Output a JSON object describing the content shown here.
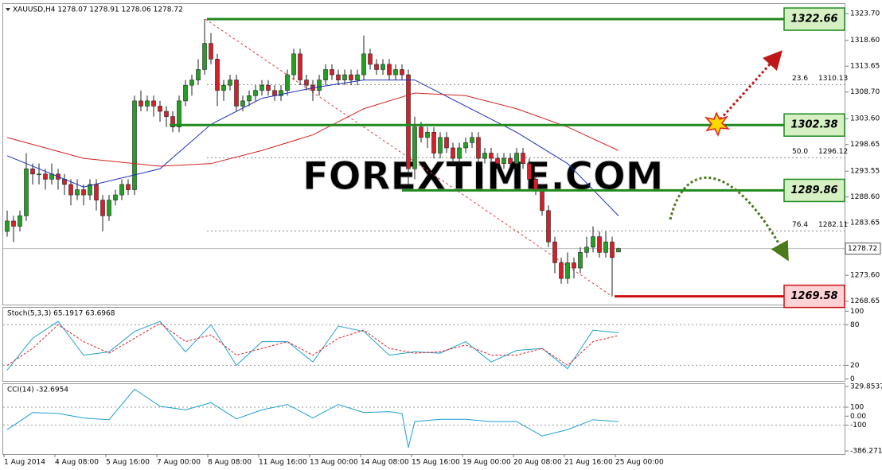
{
  "chart_data": [
    {
      "type": "candlestick",
      "title": "XAUUSD,H4 1278.07 1278.91 1278.06 1278.72",
      "watermark": "FOREXTIME.COM",
      "categories": [
        "1 Aug 2014",
        null,
        null,
        null,
        null,
        null,
        null,
        null,
        "4 Aug 08:00",
        null,
        null,
        null,
        null,
        null,
        null,
        null,
        "5 Aug 16:00",
        null,
        null,
        null,
        null,
        null,
        null,
        null,
        "7 Aug 00:00",
        null,
        null,
        null,
        null,
        null,
        null,
        null,
        "8 Aug 08:00",
        null,
        null,
        null,
        null,
        null,
        null,
        null,
        "11 Aug 16:00",
        null,
        null,
        null,
        null,
        null,
        null,
        null,
        "13 Aug 00:00",
        null,
        null,
        null,
        null,
        null,
        null,
        null,
        "14 Aug 08:00",
        null,
        null,
        null,
        null,
        null,
        null,
        null,
        "15 Aug 16:00",
        null,
        null,
        null,
        null,
        null,
        null,
        null,
        "19 Aug 00:00",
        null,
        null,
        null,
        null,
        null,
        null,
        null,
        "20 Aug 08:00",
        null,
        null,
        null,
        null,
        null,
        null,
        null,
        "21 Aug 16:00",
        null,
        null,
        null,
        null,
        null,
        null,
        null,
        "25 Aug 00:00"
      ],
      "candles": [
        [
          1282,
          1286,
          1281,
          1284
        ],
        [
          1284,
          1285,
          1280,
          1283
        ],
        [
          1283,
          1286,
          1282,
          1285
        ],
        [
          1285,
          1297,
          1284,
          1294
        ],
        [
          1294,
          1295,
          1291,
          1293
        ],
        [
          1293,
          1295,
          1291,
          1293
        ],
        [
          1293,
          1294,
          1290,
          1292
        ],
        [
          1292,
          1295,
          1291,
          1293
        ],
        [
          1293,
          1294,
          1290,
          1292
        ],
        [
          1292,
          1293,
          1289,
          1291
        ],
        [
          1291,
          1292,
          1287,
          1289
        ],
        [
          1289,
          1292,
          1288,
          1290
        ],
        [
          1290,
          1291,
          1287,
          1289
        ],
        [
          1289,
          1292,
          1288,
          1291
        ],
        [
          1291,
          1292,
          1286,
          1288
        ],
        [
          1288,
          1289,
          1282,
          1285
        ],
        [
          1285,
          1289,
          1284,
          1288
        ],
        [
          1288,
          1290,
          1287,
          1289
        ],
        [
          1289,
          1292,
          1288,
          1291
        ],
        [
          1291,
          1292,
          1289,
          1290
        ],
        [
          1290,
          1308,
          1289,
          1307
        ],
        [
          1307,
          1309,
          1305,
          1306
        ],
        [
          1306,
          1308,
          1305,
          1307
        ],
        [
          1307,
          1308,
          1304,
          1306
        ],
        [
          1306,
          1307,
          1303,
          1305
        ],
        [
          1305,
          1306,
          1302,
          1304
        ],
        [
          1304,
          1305,
          1301,
          1302
        ],
        [
          1302,
          1308,
          1301,
          1307
        ],
        [
          1307,
          1311,
          1306,
          1310
        ],
        [
          1310,
          1312,
          1308,
          1311
        ],
        [
          1311,
          1315,
          1310,
          1313
        ],
        [
          1313,
          1322.66,
          1312,
          1318
        ],
        [
          1318,
          1320,
          1314,
          1315
        ],
        [
          1315,
          1316,
          1306,
          1309
        ],
        [
          1309,
          1311,
          1307,
          1310
        ],
        [
          1310,
          1312,
          1309,
          1311
        ],
        [
          1311,
          1312,
          1305,
          1306
        ],
        [
          1306,
          1308,
          1305,
          1307
        ],
        [
          1307,
          1309,
          1306,
          1308
        ],
        [
          1308,
          1310,
          1307,
          1309
        ],
        [
          1309,
          1311,
          1308,
          1310
        ],
        [
          1310,
          1311,
          1308,
          1309
        ],
        [
          1309,
          1310,
          1307,
          1308
        ],
        [
          1308,
          1310,
          1307,
          1309
        ],
        [
          1309,
          1313,
          1308,
          1312
        ],
        [
          1312,
          1317,
          1311,
          1316
        ],
        [
          1316,
          1317,
          1310,
          1311
        ],
        [
          1311,
          1312,
          1309,
          1310
        ],
        [
          1310,
          1311,
          1307,
          1309
        ],
        [
          1309,
          1312,
          1308,
          1311
        ],
        [
          1311,
          1314,
          1310,
          1313
        ],
        [
          1313,
          1314,
          1311,
          1312
        ],
        [
          1312,
          1313,
          1310,
          1311
        ],
        [
          1311,
          1313,
          1310,
          1312
        ],
        [
          1312,
          1313,
          1310,
          1311
        ],
        [
          1311,
          1313,
          1310,
          1312
        ],
        [
          1312,
          1319.5,
          1311,
          1316
        ],
        [
          1316,
          1317,
          1313,
          1314
        ],
        [
          1314,
          1315,
          1312,
          1313
        ],
        [
          1313,
          1315,
          1312,
          1314
        ],
        [
          1314,
          1315,
          1311,
          1312
        ],
        [
          1312,
          1314,
          1311,
          1313
        ],
        [
          1313,
          1314,
          1311,
          1312
        ],
        [
          1312,
          1313,
          1291,
          1294
        ],
        [
          1294,
          1304,
          1292,
          1302
        ],
        [
          1302,
          1303,
          1299,
          1300
        ],
        [
          1300,
          1302,
          1298,
          1301
        ],
        [
          1301,
          1302,
          1296,
          1297
        ],
        [
          1297,
          1301,
          1296,
          1300
        ],
        [
          1300,
          1301,
          1297,
          1298
        ],
        [
          1298,
          1299,
          1295,
          1296
        ],
        [
          1296,
          1299,
          1295,
          1298
        ],
        [
          1298,
          1300,
          1297,
          1299
        ],
        [
          1299,
          1301,
          1298,
          1300
        ],
        [
          1300,
          1301,
          1295,
          1296
        ],
        [
          1296,
          1298,
          1295,
          1297
        ],
        [
          1297,
          1298,
          1295,
          1296
        ],
        [
          1296,
          1297,
          1294,
          1295
        ],
        [
          1295,
          1297,
          1294,
          1296
        ],
        [
          1296,
          1297,
          1294,
          1295
        ],
        [
          1295,
          1298,
          1294,
          1297
        ],
        [
          1297,
          1298,
          1294,
          1295
        ],
        [
          1295,
          1296,
          1291,
          1292
        ],
        [
          1292,
          1293,
          1289,
          1290
        ],
        [
          1290,
          1291,
          1285,
          1286
        ],
        [
          1286,
          1287,
          1279,
          1280
        ],
        [
          1280,
          1281,
          1274,
          1276
        ],
        [
          1276,
          1277,
          1272,
          1273
        ],
        [
          1273,
          1278,
          1272,
          1276
        ],
        [
          1276,
          1277,
          1273,
          1275
        ],
        [
          1275,
          1279,
          1274,
          1278
        ],
        [
          1278,
          1281,
          1277,
          1279
        ],
        [
          1279,
          1283,
          1278,
          1281
        ],
        [
          1281,
          1282,
          1277,
          1278
        ],
        [
          1278,
          1282,
          1277,
          1280
        ],
        [
          1280,
          1281,
          1269.58,
          1277
        ],
        [
          1278.07,
          1278.91,
          1278.06,
          1278.72
        ]
      ],
      "up_color": "#22a022",
      "down_color": "#d81e2a",
      "ylim": [
        1268.0,
        1325.1
      ],
      "yticks": [
        {
          "value": 1323.7,
          "label": "1323.70"
        },
        {
          "value": 1318.6,
          "label": "1318.60"
        },
        1313.65,
        {
          "value": 1308.7,
          "label": "1308.70"
        },
        {
          "value": 1303.6,
          "label": "1303.60"
        },
        1298.65,
        1293.55,
        {
          "value": 1288.6,
          "label": "1288.60"
        },
        1283.65,
        {
          "value": 1273.6,
          "label": "1273.60"
        },
        1268.65
      ],
      "moving_averages": {
        "x": [
          0,
          12,
          24,
          32,
          40,
          48,
          56,
          64,
          72,
          80,
          88,
          96
        ],
        "series": [
          {
            "color": "#1c2fb8",
            "values": [
              1296.5,
              1290.5,
              1294,
              1302.5,
              1307.5,
              1309.5,
              1311,
              1311,
              1306,
              1301,
              1295,
              1285
            ]
          },
          {
            "color": "#d42020",
            "values": [
              1300,
              1296,
              1294.5,
              1295,
              1297.5,
              1300.5,
              1305.5,
              1308.5,
              1308,
              1305.5,
              1302,
              1297.5
            ]
          }
        ]
      },
      "levels": [
        {
          "value": 1322.66,
          "color": "#1f8a1f"
        },
        {
          "value": 1302.38,
          "color": "#1f8a1f"
        },
        {
          "value": 1289.86,
          "color": "#1f8a1f"
        },
        {
          "value": 1269.58,
          "color": "#cc1010"
        }
      ],
      "fibonacci": [
        {
          "level": 23.6,
          "price": 1310.13
        },
        {
          "level": {
            "value": 50,
            "label": "50.0"
          },
          "price": 1296.12
        },
        {
          "level": 76.4,
          "price": 1282.11
        }
      ]
    },
    {
      "type": "oscillator",
      "title": "Stoch(5,3,3) 65.1917 63.6968",
      "x": [
        0,
        4,
        8,
        12,
        16,
        20,
        24,
        28,
        32,
        36,
        40,
        44,
        48,
        52,
        56,
        60,
        64,
        68,
        72,
        76,
        80,
        84,
        88,
        92,
        96
      ],
      "series": [
        {
          "color": "#1ea0d2",
          "values": [
            13,
            60,
            85,
            35,
            40,
            70,
            85,
            40,
            80,
            20,
            55,
            55,
            25,
            78,
            70,
            35,
            40,
            38,
            55,
            25,
            42,
            45,
            15,
            72,
            68
          ]
        },
        {
          "color": "#e02020",
          "dashed": true,
          "values": [
            20,
            45,
            80,
            55,
            38,
            60,
            82,
            55,
            65,
            35,
            45,
            55,
            35,
            60,
            72,
            45,
            38,
            40,
            50,
            35,
            35,
            45,
            20,
            55,
            64
          ]
        }
      ],
      "ylim": [
        -3,
        105
      ],
      "yticks": [
        100,
        80,
        20,
        0
      ],
      "levels": [
        80,
        20
      ]
    },
    {
      "type": "oscillator",
      "title": "CCI(14) -32.6954",
      "x": [
        0,
        4,
        8,
        12,
        16,
        20,
        24,
        28,
        32,
        36,
        40,
        44,
        48,
        52,
        56,
        60,
        62,
        63,
        64,
        68,
        72,
        76,
        80,
        84,
        88,
        92,
        96
      ],
      "series": [
        {
          "color": "#1ea0d2",
          "values": [
            -150,
            40,
            30,
            -20,
            -40,
            300,
            110,
            70,
            150,
            -30,
            70,
            130,
            -20,
            130,
            40,
            50,
            30,
            -350,
            -60,
            -35,
            -35,
            -60,
            -60,
            -220,
            -150,
            -40,
            -60
          ]
        }
      ],
      "ylim": [
        -386.2715,
        329.8537
      ],
      "yticks": [
        329.8537,
        100,
        {
          "value": 0,
          "label": "0.00"
        },
        -100,
        -386.2715
      ],
      "levels": [
        100,
        -100
      ]
    }
  ]
}
